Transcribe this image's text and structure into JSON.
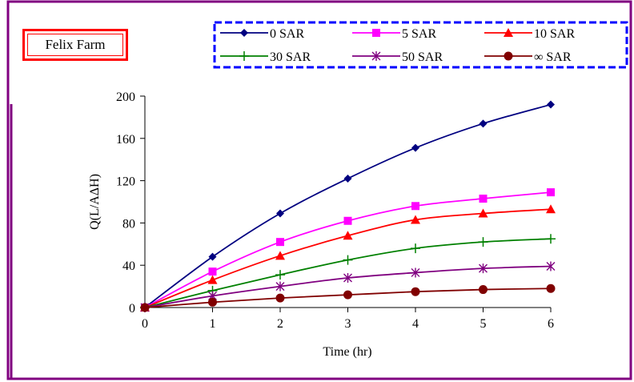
{
  "chart_data": {
    "type": "line",
    "title": "Felix Farm",
    "xlabel": "Time (hr)",
    "ylabel": "Q(L/AΔH)",
    "x": [
      0,
      1,
      2,
      3,
      4,
      5,
      6
    ],
    "xlim": [
      0,
      6
    ],
    "ylim": [
      0,
      200
    ],
    "xticks": [
      "0",
      "1",
      "2",
      "3",
      "4",
      "5",
      "6"
    ],
    "yticks": [
      "0",
      "40",
      "80",
      "120",
      "160",
      "200"
    ],
    "legend_position": "top-right",
    "grid": false,
    "series": [
      {
        "name": "0 SAR",
        "color": "#000080",
        "marker": "diamond",
        "values": [
          0,
          48,
          89,
          122,
          151,
          174,
          192
        ]
      },
      {
        "name": "5 SAR",
        "color": "#ff00ff",
        "marker": "square",
        "values": [
          0,
          34,
          62,
          82,
          96,
          103,
          109
        ]
      },
      {
        "name": "10 SAR",
        "color": "#ff0000",
        "marker": "triangle",
        "values": [
          0,
          26,
          49,
          68,
          83,
          89,
          93
        ]
      },
      {
        "name": "30 SAR",
        "color": "#008000",
        "marker": "plus",
        "values": [
          0,
          16,
          31,
          45,
          56,
          62,
          65
        ]
      },
      {
        "name": "50 SAR",
        "color": "#800080",
        "marker": "star",
        "values": [
          0,
          11,
          20,
          28,
          33,
          37,
          39
        ]
      },
      {
        "name": "∞ SAR",
        "color": "#800000",
        "marker": "circle",
        "values": [
          0,
          5,
          9,
          12,
          15,
          17,
          18
        ]
      }
    ]
  }
}
